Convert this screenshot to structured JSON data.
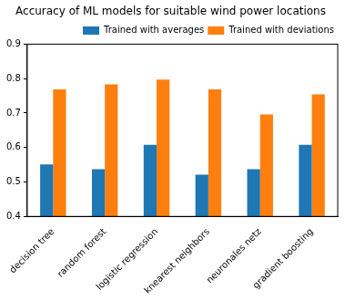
{
  "chart_data": {
    "type": "bar",
    "title": "Accuracy of ML models for suitable wind power locations",
    "categories": [
      "decision tree",
      "random forest",
      "logistic regression",
      "knearest neighbors",
      "neuronales netz",
      "gradient boosting"
    ],
    "series": [
      {
        "name": "Trained with averages",
        "color": "#1f77b4",
        "values": [
          0.551,
          0.537,
          0.608,
          0.521,
          0.537,
          0.608
        ]
      },
      {
        "name": "Trained with deviations",
        "color": "#ff7f0e",
        "values": [
          0.769,
          0.783,
          0.797,
          0.769,
          0.696,
          0.754
        ]
      }
    ],
    "ylim": [
      0.4,
      0.9
    ],
    "yticks": [
      0.4,
      0.5,
      0.6,
      0.7,
      0.8,
      0.9
    ],
    "grid": false,
    "legend": "upper right"
  }
}
